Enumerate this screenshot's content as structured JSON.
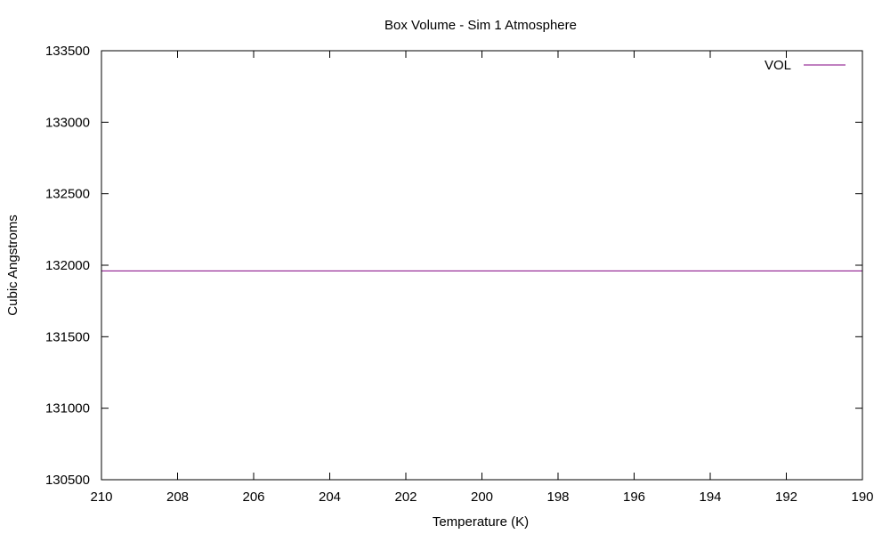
{
  "chart_data": {
    "type": "line",
    "title": "Box Volume - Sim 1 Atmosphere",
    "xlabel": "Temperature (K)",
    "ylabel": "Cubic Angstroms",
    "xlim": [
      210,
      190
    ],
    "ylim": [
      130500,
      133500
    ],
    "x_reversed": true,
    "xticks": [
      210,
      208,
      206,
      204,
      202,
      200,
      198,
      196,
      194,
      192,
      190
    ],
    "yticks": [
      130500,
      131000,
      131500,
      132000,
      132500,
      133000,
      133500
    ],
    "grid": false,
    "legend_position": "top-right",
    "series": [
      {
        "name": "VOL",
        "color": "#800080",
        "x": [
          210,
          190
        ],
        "y": [
          131960,
          131960
        ]
      }
    ]
  }
}
